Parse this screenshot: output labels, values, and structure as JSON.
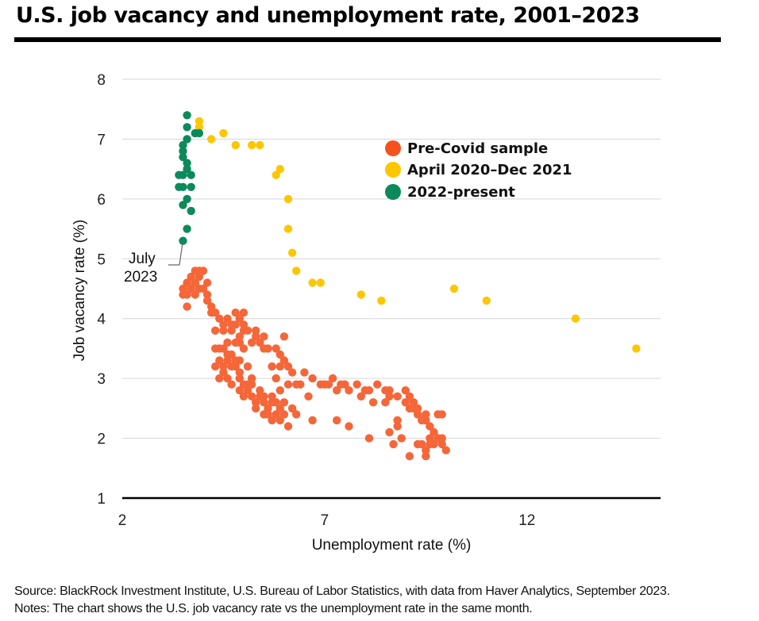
{
  "title": "U.S. job vacancy and unemployment rate, 2001–2023",
  "footer": {
    "source": "Source: BlackRock Investment Institute, U.S. Bureau of Labor Statistics, with data from Haver Analytics, September 2023.",
    "notes": "Notes: The chart shows the U.S. job vacancy rate vs the unemployment rate in the same month."
  },
  "chart_data": {
    "type": "scatter",
    "title": "U.S. job vacancy and unemployment rate, 2001–2023",
    "xlabel": "Unemployment rate (%)",
    "ylabel": "Job vacancy rate (%)",
    "xlim": [
      2,
      15.3
    ],
    "ylim": [
      1,
      8
    ],
    "x_ticks": [
      2,
      7,
      12
    ],
    "y_ticks": [
      1,
      2,
      3,
      4,
      5,
      6,
      7,
      8
    ],
    "grid": "horizontal",
    "legend_position": "top-right",
    "annotation": {
      "text_line1": "July",
      "text_line2": "2023",
      "x": 3.5,
      "y": 5.3
    },
    "series": [
      {
        "name": "Pre-Covid sample",
        "color": "#f4511e",
        "points": [
          [
            3.5,
            4.4
          ],
          [
            3.5,
            4.5
          ],
          [
            3.6,
            4.6
          ],
          [
            3.6,
            4.4
          ],
          [
            3.7,
            4.5
          ],
          [
            3.7,
            4.7
          ],
          [
            3.8,
            4.6
          ],
          [
            3.8,
            4.8
          ],
          [
            3.9,
            4.5
          ],
          [
            3.9,
            4.7
          ],
          [
            3.6,
            4.2
          ],
          [
            3.7,
            4.5
          ],
          [
            3.8,
            4.6
          ],
          [
            4.0,
            4.8
          ],
          [
            4.1,
            4.6
          ],
          [
            4.1,
            4.4
          ],
          [
            4.2,
            4.1
          ],
          [
            4.3,
            4.1
          ],
          [
            4.1,
            4.3
          ],
          [
            4.2,
            4.2
          ],
          [
            3.9,
            4.8
          ],
          [
            3.8,
            4.4
          ],
          [
            4.0,
            4.5
          ],
          [
            3.6,
            4.6
          ],
          [
            4.4,
            4.0
          ],
          [
            4.5,
            3.9
          ],
          [
            4.6,
            4.0
          ],
          [
            4.7,
            3.9
          ],
          [
            4.8,
            3.9
          ],
          [
            4.9,
            4.0
          ],
          [
            5.0,
            3.9
          ],
          [
            4.8,
            4.1
          ],
          [
            5.0,
            4.1
          ],
          [
            4.7,
            3.8
          ],
          [
            4.9,
            3.7
          ],
          [
            5.1,
            3.8
          ],
          [
            5.2,
            3.6
          ],
          [
            5.3,
            3.7
          ],
          [
            5.4,
            3.6
          ],
          [
            5.0,
            3.5
          ],
          [
            4.6,
            3.6
          ],
          [
            4.4,
            3.5
          ],
          [
            4.3,
            3.8
          ],
          [
            4.5,
            3.8
          ],
          [
            5.6,
            3.5
          ],
          [
            5.8,
            3.5
          ],
          [
            5.9,
            3.4
          ],
          [
            6.0,
            3.3
          ],
          [
            6.1,
            3.2
          ],
          [
            5.7,
            3.2
          ],
          [
            6.0,
            3.7
          ],
          [
            5.5,
            3.5
          ],
          [
            5.3,
            3.8
          ],
          [
            5.5,
            3.7
          ],
          [
            4.4,
            3.3
          ],
          [
            4.5,
            3.2
          ],
          [
            4.6,
            3.3
          ],
          [
            4.7,
            3.2
          ],
          [
            4.8,
            3.3
          ],
          [
            4.5,
            3.1
          ],
          [
            4.6,
            3.0
          ],
          [
            4.7,
            2.9
          ],
          [
            4.9,
            2.8
          ],
          [
            5.0,
            2.9
          ],
          [
            5.1,
            2.8
          ],
          [
            5.2,
            2.7
          ],
          [
            5.3,
            2.6
          ],
          [
            5.4,
            2.7
          ],
          [
            5.5,
            2.6
          ],
          [
            5.6,
            2.5
          ],
          [
            5.7,
            2.6
          ],
          [
            5.8,
            2.4
          ],
          [
            5.9,
            2.3
          ],
          [
            6.0,
            2.4
          ],
          [
            6.1,
            2.2
          ],
          [
            6.2,
            2.5
          ],
          [
            5.1,
            2.9
          ],
          [
            5.0,
            2.7
          ],
          [
            4.9,
            3.0
          ],
          [
            4.8,
            3.2
          ],
          [
            4.6,
            3.4
          ],
          [
            4.7,
            3.4
          ],
          [
            4.9,
            3.1
          ],
          [
            5.2,
            2.9
          ],
          [
            5.4,
            2.8
          ],
          [
            5.5,
            2.7
          ],
          [
            5.6,
            2.4
          ],
          [
            5.7,
            2.7
          ],
          [
            5.8,
            2.6
          ],
          [
            5.9,
            2.5
          ],
          [
            6.0,
            2.6
          ],
          [
            5.3,
            2.5
          ],
          [
            5.5,
            2.4
          ],
          [
            5.7,
            2.3
          ],
          [
            4.4,
            3.0
          ],
          [
            4.3,
            3.2
          ],
          [
            4.3,
            3.5
          ],
          [
            4.5,
            3.5
          ],
          [
            4.9,
            3.3
          ],
          [
            5.1,
            3.2
          ],
          [
            5.2,
            3.0
          ],
          [
            4.8,
            3.6
          ],
          [
            4.9,
            3.6
          ],
          [
            5.0,
            3.8
          ],
          [
            6.5,
            3.1
          ],
          [
            6.7,
            3.0
          ],
          [
            6.9,
            2.9
          ],
          [
            7.0,
            2.9
          ],
          [
            7.2,
            3.0
          ],
          [
            7.4,
            2.9
          ],
          [
            7.6,
            2.8
          ],
          [
            7.8,
            2.9
          ],
          [
            8.0,
            2.8
          ],
          [
            8.1,
            2.8
          ],
          [
            8.3,
            2.9
          ],
          [
            8.5,
            2.8
          ],
          [
            8.6,
            2.7
          ],
          [
            8.8,
            2.7
          ],
          [
            9.0,
            2.8
          ],
          [
            9.1,
            2.7
          ],
          [
            9.1,
            2.5
          ],
          [
            9.3,
            2.5
          ],
          [
            9.3,
            2.4
          ],
          [
            9.4,
            2.3
          ],
          [
            9.5,
            2.4
          ],
          [
            9.6,
            2.2
          ],
          [
            9.7,
            2.1
          ],
          [
            9.8,
            2.0
          ],
          [
            9.9,
            1.9
          ],
          [
            10.0,
            1.8
          ],
          [
            9.6,
            2.0
          ],
          [
            9.5,
            1.8
          ],
          [
            9.8,
            2.4
          ],
          [
            9.9,
            2.4
          ],
          [
            9.7,
            1.9
          ],
          [
            9.6,
            1.9
          ],
          [
            9.9,
            2.0
          ],
          [
            9.1,
            1.7
          ],
          [
            9.5,
            1.7
          ],
          [
            9.3,
            1.9
          ],
          [
            8.8,
            2.2
          ],
          [
            8.9,
            2.0
          ],
          [
            9.2,
            2.5
          ],
          [
            9.2,
            2.6
          ],
          [
            8.8,
            2.3
          ],
          [
            9.5,
            2.3
          ],
          [
            9.4,
            1.9
          ],
          [
            8.6,
            2.1
          ],
          [
            8.1,
            2.0
          ],
          [
            8.7,
            1.9
          ],
          [
            7.6,
            2.2
          ],
          [
            7.3,
            2.3
          ],
          [
            6.7,
            2.3
          ],
          [
            6.3,
            2.4
          ],
          [
            7.1,
            2.9
          ],
          [
            7.3,
            2.8
          ],
          [
            7.5,
            2.9
          ],
          [
            7.9,
            2.7
          ],
          [
            8.2,
            2.6
          ],
          [
            8.5,
            2.6
          ],
          [
            8.0,
            2.8
          ],
          [
            8.6,
            2.8
          ],
          [
            9.0,
            2.6
          ],
          [
            6.3,
            2.9
          ],
          [
            6.4,
            2.9
          ],
          [
            6.6,
            2.7
          ],
          [
            7.0,
            2.9
          ],
          [
            5.8,
            2.6
          ],
          [
            5.9,
            2.8
          ],
          [
            6.1,
            2.9
          ],
          [
            5.8,
            3.0
          ],
          [
            6.2,
            3.1
          ],
          [
            6.0,
            3.3
          ],
          [
            5.9,
            3.2
          ]
        ]
      },
      {
        "name": "April 2020–Dec 2021",
        "color": "#fcc700",
        "points": [
          [
            14.7,
            3.5
          ],
          [
            13.2,
            4.0
          ],
          [
            11.0,
            4.3
          ],
          [
            10.2,
            4.5
          ],
          [
            8.4,
            4.3
          ],
          [
            7.9,
            4.4
          ],
          [
            6.9,
            4.6
          ],
          [
            6.7,
            4.6
          ],
          [
            6.3,
            4.8
          ],
          [
            6.2,
            5.1
          ],
          [
            6.1,
            5.5
          ],
          [
            6.1,
            6.0
          ],
          [
            5.9,
            6.5
          ],
          [
            5.8,
            6.4
          ],
          [
            5.4,
            6.9
          ],
          [
            5.2,
            6.9
          ],
          [
            4.8,
            6.9
          ],
          [
            4.5,
            7.1
          ],
          [
            4.2,
            7.0
          ],
          [
            3.9,
            7.2
          ],
          [
            3.9,
            7.3
          ]
        ]
      },
      {
        "name": "2022-present",
        "color": "#0d8a5b",
        "points": [
          [
            3.6,
            7.4
          ],
          [
            3.6,
            7.2
          ],
          [
            3.9,
            7.1
          ],
          [
            3.8,
            7.1
          ],
          [
            3.6,
            7.0
          ],
          [
            3.5,
            6.9
          ],
          [
            3.5,
            6.8
          ],
          [
            3.5,
            6.7
          ],
          [
            3.6,
            6.6
          ],
          [
            3.6,
            6.5
          ],
          [
            3.5,
            6.4
          ],
          [
            3.7,
            6.4
          ],
          [
            3.5,
            6.2
          ],
          [
            3.7,
            6.2
          ],
          [
            3.6,
            6.0
          ],
          [
            3.5,
            5.9
          ],
          [
            3.7,
            5.8
          ],
          [
            3.6,
            5.5
          ],
          [
            3.5,
            5.3
          ],
          [
            3.4,
            6.4
          ],
          [
            3.4,
            6.2
          ]
        ]
      }
    ]
  }
}
